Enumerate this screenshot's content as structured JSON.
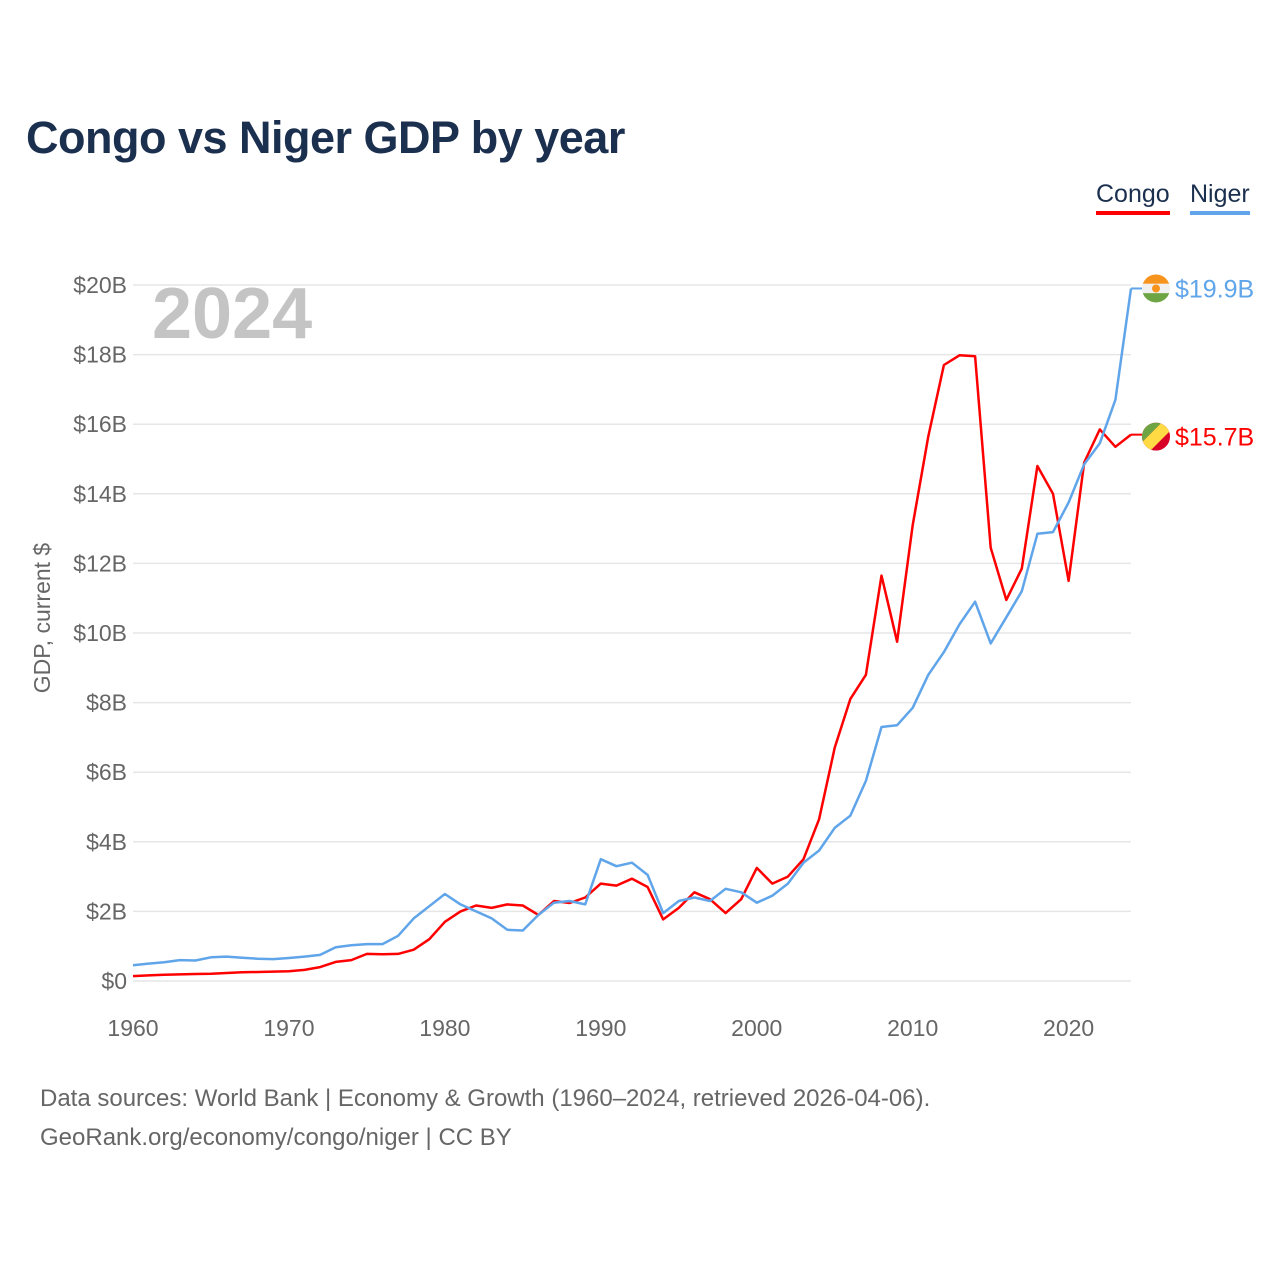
{
  "title": "Congo vs Niger GDP by year",
  "footer": {
    "line1": "Data sources: World Bank | Economy & Growth (1960–2024, retrieved 2026-04-06).",
    "line2": "GeoRank.org/economy/congo/niger | CC BY"
  },
  "chart_data": {
    "type": "line",
    "title": "Congo vs Niger GDP by year",
    "year_label": "2024",
    "xlabel": "",
    "ylabel": "GDP, current $",
    "xlim": [
      1960,
      2024
    ],
    "ylim": [
      0,
      20
    ],
    "x_ticks": [
      1960,
      1970,
      1980,
      1990,
      2000,
      2010,
      2020
    ],
    "y_ticks": [
      0,
      2,
      4,
      6,
      8,
      10,
      12,
      14,
      16,
      18,
      20
    ],
    "y_tick_labels": [
      "$0",
      "$2B",
      "$4B",
      "$6B",
      "$8B",
      "$10B",
      "$12B",
      "$14B",
      "$16B",
      "$18B",
      "$20B"
    ],
    "grid": true,
    "legend_position": "top-right",
    "x_start": 1960,
    "series": [
      {
        "name": "Congo",
        "color": "#ff0000",
        "end_label": "$15.7B",
        "flag_icon": "congo-flag-icon",
        "values": [
          0.14,
          0.16,
          0.18,
          0.19,
          0.2,
          0.21,
          0.23,
          0.25,
          0.26,
          0.27,
          0.28,
          0.32,
          0.4,
          0.55,
          0.6,
          0.78,
          0.77,
          0.78,
          0.9,
          1.2,
          1.7,
          2.0,
          2.17,
          2.1,
          2.2,
          2.17,
          1.9,
          2.3,
          2.24,
          2.4,
          2.8,
          2.74,
          2.94,
          2.7,
          1.77,
          2.1,
          2.55,
          2.35,
          1.95,
          2.35,
          3.25,
          2.8,
          3.0,
          3.5,
          4.65,
          6.7,
          8.1,
          8.8,
          11.65,
          9.75,
          13.1,
          15.65,
          17.7,
          17.98,
          17.95,
          12.45,
          10.95,
          11.85,
          14.8,
          14.0,
          11.5,
          14.9,
          15.85,
          15.35,
          15.7
        ]
      },
      {
        "name": "Niger",
        "color": "#60a5ea",
        "end_label": "$19.9B",
        "flag_icon": "niger-flag-icon",
        "values": [
          0.45,
          0.5,
          0.54,
          0.6,
          0.59,
          0.68,
          0.7,
          0.67,
          0.64,
          0.63,
          0.66,
          0.7,
          0.75,
          0.97,
          1.03,
          1.06,
          1.06,
          1.3,
          1.8,
          2.15,
          2.5,
          2.2,
          2.0,
          1.8,
          1.47,
          1.45,
          1.9,
          2.25,
          2.3,
          2.2,
          3.5,
          3.3,
          3.4,
          3.05,
          1.95,
          2.3,
          2.4,
          2.3,
          2.65,
          2.55,
          2.25,
          2.45,
          2.8,
          3.4,
          3.75,
          4.4,
          4.75,
          5.75,
          7.3,
          7.35,
          7.85,
          8.8,
          9.45,
          10.25,
          10.9,
          9.7,
          10.45,
          11.2,
          12.85,
          12.9,
          13.75,
          14.85,
          15.45,
          16.7,
          19.9
        ]
      }
    ]
  }
}
